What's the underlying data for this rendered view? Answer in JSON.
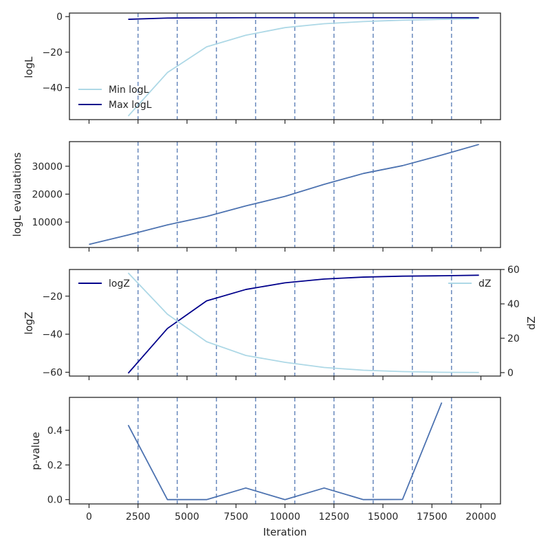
{
  "colors": {
    "light": "#add8e6",
    "dark": "#00008b",
    "steel": "#4c72b0",
    "vline": "#4c72b0",
    "axes": "#262626"
  },
  "chart_data": [
    {
      "type": "line",
      "ylabel": "logL",
      "xlim": [
        -1000,
        21000
      ],
      "ylim": [
        -58,
        2
      ],
      "yticks": [
        -40,
        -20,
        0
      ],
      "ytick_labels": [
        "−40",
        "−20",
        "0"
      ],
      "legend": "lower-left",
      "series": [
        {
          "name": "Min logL",
          "color": "#add8e6",
          "x": [
            2000,
            4000,
            6000,
            8000,
            10000,
            12000,
            14000,
            16000,
            18000,
            19900
          ],
          "y": [
            -56,
            -31.5,
            -17,
            -10.5,
            -6.2,
            -4,
            -2.8,
            -2,
            -1.5,
            -1.2
          ]
        },
        {
          "name": "Max logL",
          "color": "#00008b",
          "x": [
            2000,
            4000,
            6000,
            8000,
            10000,
            12000,
            14000,
            16000,
            18000,
            19900
          ],
          "y": [
            -1.5,
            -0.8,
            -0.7,
            -0.6,
            -0.6,
            -0.6,
            -0.6,
            -0.6,
            -0.6,
            -0.6
          ]
        }
      ]
    },
    {
      "type": "line",
      "ylabel": "logL evaluations",
      "xlim": [
        -1000,
        21000
      ],
      "ylim": [
        900,
        38800
      ],
      "yticks": [
        10000,
        20000,
        30000
      ],
      "ytick_labels": [
        "10000",
        "20000",
        "30000"
      ],
      "series": [
        {
          "color": "#4c72b0",
          "x": [
            0,
            2000,
            4000,
            6000,
            8000,
            10000,
            12000,
            14000,
            16000,
            18000,
            19900
          ],
          "y": [
            2000,
            5400,
            9000,
            12000,
            15800,
            19200,
            23500,
            27400,
            30200,
            34000,
            37800
          ]
        }
      ]
    },
    {
      "type": "line",
      "ylabel": "logZ",
      "ylabel_right": "dZ",
      "xlim": [
        -1000,
        21000
      ],
      "ylim": [
        -62,
        -6
      ],
      "yticks": [
        -60,
        -40,
        -20
      ],
      "ytick_labels": [
        "−60",
        "−40",
        "−20"
      ],
      "ylim_right": [
        -2,
        60
      ],
      "yticks_right": [
        0,
        20,
        40,
        60
      ],
      "ytick_labels_right": [
        "0",
        "20",
        "40",
        "60"
      ],
      "series": [
        {
          "name": "logZ",
          "axis": "left",
          "legend": "upper-left",
          "color": "#00008b",
          "x": [
            2000,
            4000,
            6000,
            8000,
            10000,
            12000,
            14000,
            16000,
            18000,
            19900
          ],
          "y": [
            -60.5,
            -37,
            -22.5,
            -16.5,
            -13,
            -11,
            -10,
            -9.5,
            -9.3,
            -9
          ]
        },
        {
          "name": "dZ",
          "axis": "right",
          "legend": "upper-right",
          "color": "#add8e6",
          "x": [
            2000,
            4000,
            6000,
            8000,
            10000,
            12000,
            14000,
            16000,
            18000,
            19900
          ],
          "y": [
            58,
            34,
            18,
            10,
            6,
            3,
            1.4,
            0.6,
            0.2,
            0.1
          ]
        }
      ]
    },
    {
      "type": "line",
      "ylabel": "p-value",
      "xlabel": "Iteration",
      "xlim": [
        -1000,
        21000
      ],
      "ylim": [
        -0.025,
        0.59
      ],
      "yticks": [
        0,
        0.2,
        0.4
      ],
      "ytick_labels": [
        "0.0",
        "0.2",
        "0.4"
      ],
      "series": [
        {
          "color": "#4c72b0",
          "x": [
            2000,
            4000,
            6000,
            8000,
            10000,
            12000,
            14000,
            16000,
            18000
          ],
          "y": [
            0.43,
            0.0,
            0.0,
            0.067,
            0.0,
            0.067,
            0.0,
            0.001,
            0.56
          ]
        }
      ]
    }
  ],
  "shared_x": {
    "ticks": [
      0,
      2500,
      5000,
      7500,
      10000,
      12500,
      15000,
      17500,
      20000
    ],
    "tick_labels": [
      "0",
      "2500",
      "5000",
      "7500",
      "10000",
      "12500",
      "15000",
      "17500",
      "20000"
    ],
    "vertical_lines": [
      2500,
      4500,
      6500,
      8500,
      10500,
      12500,
      14500,
      16500,
      18500
    ]
  }
}
